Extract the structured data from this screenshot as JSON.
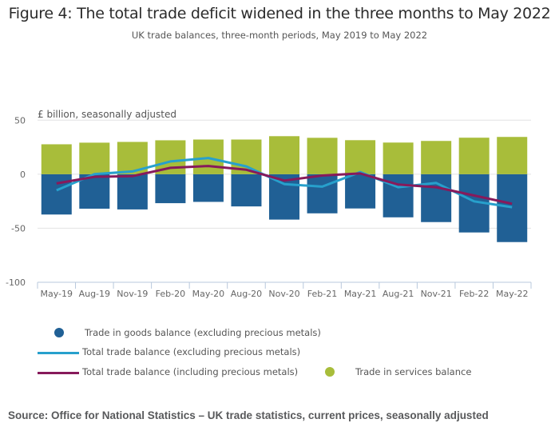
{
  "colors": {
    "goods": "#206095",
    "services": "#a8bd3a",
    "total_excl": "#27a0cc",
    "total_incl": "#871a5b",
    "grid": "#e2e2e3",
    "axis": "#b8c8dc"
  },
  "chart_data": {
    "type": "bar",
    "title": "Figure 4: The total trade deficit widened in the three months to May 2022",
    "subtitle": "UK trade balances, three-month periods, May 2019 to May 2022",
    "ylabel": "£ billion, seasonally adjusted",
    "xlabel": "",
    "ylim": [
      -100,
      50
    ],
    "yticks": [
      50,
      0,
      -50,
      -100
    ],
    "ytick_labels": [
      "50",
      "0",
      "-50",
      "-100"
    ],
    "grid": true,
    "stacked": true,
    "categories": [
      "May-19",
      "Aug-19",
      "Nov-19",
      "Feb-20",
      "May-20",
      "Aug-20",
      "Nov-20",
      "Feb-21",
      "May-21",
      "Aug-21",
      "Nov-21",
      "Feb-22",
      "May-22"
    ],
    "series": [
      {
        "name": "Trade in goods balance (excluding precious metals)",
        "type": "bar",
        "color_key": "goods",
        "values": [
          -37.3,
          -31.9,
          -32.6,
          -26.8,
          -25.6,
          -29.8,
          -42.0,
          -36.2,
          -31.7,
          -39.9,
          -44.3,
          -53.9,
          -62.8
        ]
      },
      {
        "name": "Trade in services balance",
        "type": "bar",
        "color_key": "services",
        "values": [
          27.7,
          29.2,
          29.9,
          31.4,
          32.1,
          32.1,
          35.2,
          33.7,
          31.5,
          29.3,
          30.8,
          33.8,
          34.5
        ]
      },
      {
        "name": "Total trade balance (excluding precious metals)",
        "type": "line",
        "color_key": "total_excl",
        "values": [
          -14.9,
          0.1,
          2.6,
          11.8,
          15.0,
          7.2,
          -9.1,
          -11.5,
          2.0,
          -12.0,
          -8.1,
          -25.1,
          -30.5
        ]
      },
      {
        "name": "Total trade balance (including precious metals)",
        "type": "line",
        "color_key": "total_incl",
        "values": [
          -8.5,
          -2.4,
          -1.8,
          5.9,
          7.6,
          4.1,
          -5.9,
          -1.2,
          0.7,
          -9.6,
          -12.0,
          -19.7,
          -27.3
        ]
      }
    ],
    "legend_position": "bottom"
  },
  "legend": {
    "goods": "Trade in goods balance (excluding precious metals)",
    "total_excl": "Total trade balance (excluding precious metals)",
    "total_incl": "Total trade balance (including precious metals)",
    "services": "Trade in services balance"
  },
  "source": "Source: Office for National Statistics – UK trade statistics, current prices, seasonally adjusted"
}
